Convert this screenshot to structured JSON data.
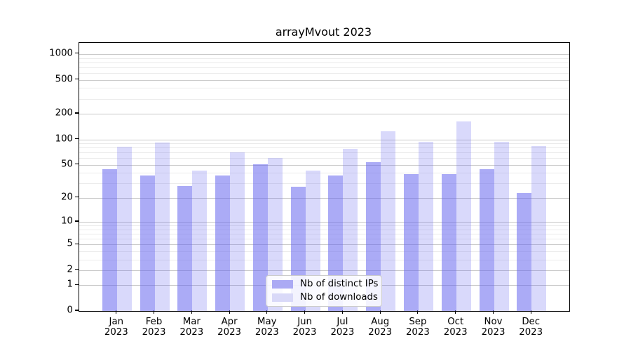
{
  "title": "arrayMvout 2023",
  "colors": {
    "ips_bar": "rgba(102,102,238,0.55)",
    "downloads_bar": "rgba(102,102,238,0.25)",
    "ips_swatch": "#abaaf4",
    "downloads_swatch": "#d9d9f8",
    "grid_major": "#c8c8c8",
    "grid_minor": "#ebebeb",
    "spine": "#000000",
    "background": "#ffffff"
  },
  "legend": {
    "position": "lower center",
    "items": [
      {
        "label": "Nb of distinct IPs",
        "series_key": "ips"
      },
      {
        "label": "Nb of downloads",
        "series_key": "downloads"
      }
    ]
  },
  "chart_data": {
    "type": "bar",
    "title": "arrayMvout 2023",
    "categories": [
      "Jan",
      "Feb",
      "Mar",
      "Apr",
      "May",
      "Jun",
      "Jul",
      "Aug",
      "Sep",
      "Oct",
      "Nov",
      "Dec"
    ],
    "year": "2023",
    "series": [
      {
        "name": "Nb of distinct IPs",
        "key": "ips",
        "values": [
          44,
          37,
          28,
          37,
          51,
          27,
          37,
          54,
          39,
          39,
          44,
          23
        ]
      },
      {
        "name": "Nb of downloads",
        "key": "downloads",
        "values": [
          82,
          92,
          43,
          70,
          60,
          43,
          77,
          124,
          93,
          162,
          94,
          84
        ]
      }
    ],
    "xlabel": "",
    "ylabel": "",
    "y_scale": "log10(value+1)",
    "y_ticks": [
      0,
      1,
      2,
      5,
      10,
      20,
      50,
      100,
      200,
      500,
      1000
    ],
    "ylim": [
      0,
      1340
    ],
    "grid": true,
    "legend_position": "lower center"
  }
}
